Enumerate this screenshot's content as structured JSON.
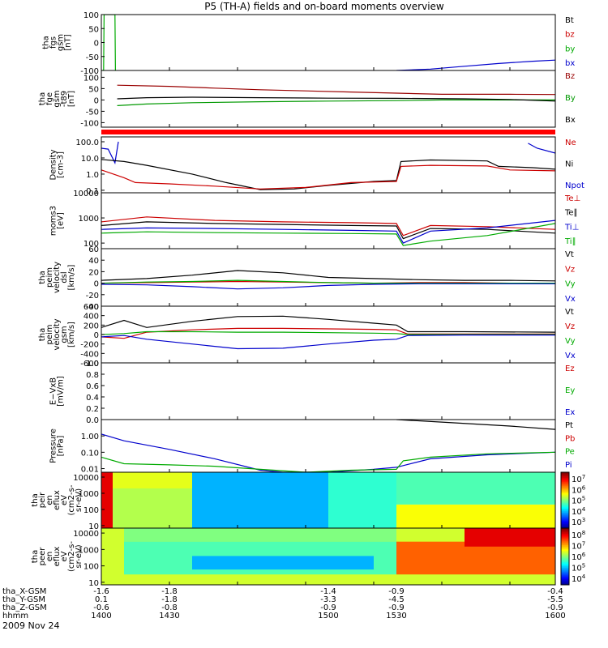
{
  "title": "P5 (TH-A) fields and on-board moments overview",
  "date_label": "2009 Nov 24",
  "time_axis": {
    "rows": [
      {
        "label": "tha_X-GSM",
        "values": [
          "-1.6",
          "-1.8",
          "-1.4",
          "-0.9",
          "-0.4"
        ]
      },
      {
        "label": "tha_Y-GSM",
        "values": [
          "0.1",
          "-1.8",
          "-3.3",
          "-4.5",
          "-5.5"
        ]
      },
      {
        "label": "tha_Z-GSM",
        "values": [
          "-0.6",
          "-0.8",
          "-0.9",
          "-0.9",
          "-0.9"
        ]
      },
      {
        "label": "hhmm",
        "values": [
          "1400",
          "1430",
          "1500",
          "1530",
          "1600"
        ]
      }
    ]
  },
  "colors": {
    "black": "#000000",
    "red": "#cc0000",
    "green": "#00cc00",
    "blue": "#0000cc",
    "dark_red": "#990000"
  },
  "chart_data": [
    {
      "type": "line",
      "panel": "fgs",
      "ylabel": [
        "tha",
        "fgs",
        "gsm",
        "[nT]"
      ],
      "ylim": [
        -100,
        100
      ],
      "yticks": [
        "100",
        "50",
        "0",
        "-50",
        "-100"
      ],
      "legend": [
        {
          "name": "Bt",
          "color": "#000000"
        },
        {
          "name": "bz",
          "color": "#cc0000"
        },
        {
          "name": "by",
          "color": "#00aa00"
        },
        {
          "name": "bx",
          "color": "#0000cc"
        }
      ],
      "series": [
        {
          "name": "by",
          "x": [
            1400,
            1401,
            1401.2,
            1406,
            1406.2
          ],
          "y": [
            -100,
            -100,
            100,
            100,
            -100
          ]
        },
        {
          "name": "bx",
          "x": [
            1530,
            1545,
            1560,
            1575,
            1590,
            1600
          ],
          "y": [
            -100,
            -95,
            -85,
            -75,
            -67,
            -63
          ]
        }
      ]
    },
    {
      "type": "line",
      "panel": "fge",
      "ylabel": [
        "tha",
        "fge",
        "gsm",
        "-t89",
        "[nT]"
      ],
      "ylim": [
        -120,
        130
      ],
      "yticks": [
        "100",
        "50",
        "0",
        "-50",
        "-100"
      ],
      "legend": [
        {
          "name": "Bz",
          "color": "#990000"
        },
        {
          "name": "By",
          "color": "#009900"
        },
        {
          "name": "Bx",
          "color": "#000000"
        }
      ],
      "series": [
        {
          "name": "Bz",
          "x": [
            1407,
            1430,
            1450,
            1470,
            1490,
            1510,
            1530,
            1550,
            1580,
            1600
          ],
          "y": [
            65,
            60,
            52,
            45,
            40,
            35,
            30,
            25,
            25,
            24
          ]
        },
        {
          "name": "By",
          "x": [
            1407,
            1420,
            1440,
            1470,
            1500,
            1530,
            1550,
            1580,
            1600
          ],
          "y": [
            -25,
            -18,
            -12,
            -8,
            -5,
            -3,
            0,
            0,
            0
          ]
        },
        {
          "name": "Bx",
          "x": [
            1407,
            1420,
            1440,
            1470,
            1500,
            1530,
            1560,
            1580,
            1600
          ],
          "y": [
            5,
            10,
            12,
            10,
            8,
            7,
            5,
            2,
            -5
          ]
        }
      ]
    },
    {
      "type": "line",
      "panel": "density",
      "ylabel": [
        "Density",
        "[cm-3]"
      ],
      "log": true,
      "ylim": [
        0.07,
        200
      ],
      "yticks": [
        "100.0",
        "10.0",
        "1.0",
        "0.1"
      ],
      "legend": [
        {
          "name": "Ne",
          "color": "#cc0000"
        },
        {
          "name": "Ni",
          "color": "#000000"
        },
        {
          "name": "Npot",
          "color": "#0000cc"
        }
      ],
      "series": [
        {
          "name": "Npot",
          "x": [
            1400,
            1403,
            1406,
            1407.5
          ],
          "y": [
            40,
            35,
            5,
            100
          ]
        },
        {
          "name": "Npot",
          "x": [
            1588,
            1592,
            1600
          ],
          "y": [
            80,
            40,
            20
          ]
        },
        {
          "name": "Ni",
          "x": [
            1400,
            1410,
            1420,
            1440,
            1455,
            1470,
            1485,
            1500,
            1520,
            1530,
            1532,
            1545,
            1570,
            1575,
            1590,
            1600
          ],
          "y": [
            8,
            6,
            3.5,
            1.0,
            0.3,
            0.11,
            0.12,
            0.2,
            0.35,
            0.4,
            6,
            7.5,
            6.5,
            3,
            2.5,
            2.0
          ]
        },
        {
          "name": "Ne",
          "x": [
            1400,
            1410,
            1415,
            1430,
            1450,
            1470,
            1490,
            1510,
            1530,
            1532,
            1545,
            1570,
            1580,
            1600
          ],
          "y": [
            1.8,
            0.6,
            0.3,
            0.25,
            0.18,
            0.12,
            0.15,
            0.3,
            0.35,
            3,
            3.5,
            3.2,
            1.8,
            1.6
          ]
        }
      ]
    },
    {
      "type": "line",
      "panel": "temperature",
      "ylabel": [
        "moms3",
        "[eV]"
      ],
      "log": true,
      "ylim": [
        60,
        10000
      ],
      "yticks": [
        "10000",
        "1000",
        "100"
      ],
      "legend": [
        {
          "name": "Te⊥",
          "color": "#cc0000"
        },
        {
          "name": "Te∥",
          "color": "#000000"
        },
        {
          "name": "Ti⊥",
          "color": "#0000cc"
        },
        {
          "name": "Ti∥",
          "color": "#00aa00"
        }
      ],
      "series": [
        {
          "name": "Te⊥",
          "x": [
            1400,
            1420,
            1450,
            1480,
            1510,
            1530,
            1533,
            1545,
            1570,
            1600
          ],
          "y": [
            700,
            1100,
            800,
            700,
            650,
            600,
            200,
            500,
            450,
            350
          ]
        },
        {
          "name": "Te∥",
          "x": [
            1400,
            1420,
            1450,
            1480,
            1510,
            1530,
            1533,
            1545,
            1570,
            1600
          ],
          "y": [
            500,
            700,
            600,
            550,
            500,
            480,
            150,
            380,
            350,
            250
          ]
        },
        {
          "name": "Ti⊥",
          "x": [
            1400,
            1420,
            1450,
            1480,
            1510,
            1530,
            1533,
            1545,
            1570,
            1600
          ],
          "y": [
            350,
            400,
            380,
            350,
            320,
            300,
            100,
            300,
            400,
            800
          ]
        },
        {
          "name": "Ti∥",
          "x": [
            1400,
            1420,
            1450,
            1480,
            1510,
            1530,
            1533,
            1545,
            1570,
            1600
          ],
          "y": [
            250,
            280,
            260,
            250,
            240,
            230,
            80,
            120,
            200,
            600
          ]
        }
      ]
    },
    {
      "type": "line",
      "panel": "eesa_velocity",
      "ylabel": [
        "tha",
        "peim",
        "velocity",
        "dsl",
        "[km/s]"
      ],
      "ylim": [
        -40,
        60
      ],
      "yticks": [
        "60",
        "40",
        "20",
        "0",
        "-20",
        "-40"
      ],
      "legend": [
        {
          "name": "Vt",
          "color": "#000000"
        },
        {
          "name": "Vz",
          "color": "#cc0000"
        },
        {
          "name": "Vy",
          "color": "#00aa00"
        },
        {
          "name": "Vx",
          "color": "#0000cc"
        }
      ],
      "series": [
        {
          "name": "Vt",
          "x": [
            1400,
            1420,
            1440,
            1460,
            1480,
            1500,
            1520,
            1540,
            1560,
            1580,
            1600
          ],
          "y": [
            5,
            8,
            14,
            22,
            18,
            10,
            8,
            6,
            5,
            5,
            4
          ]
        },
        {
          "name": "Vz",
          "x": [
            1400,
            1420,
            1440,
            1460,
            1480,
            1500,
            1520,
            1540,
            1560,
            1580,
            1600
          ],
          "y": [
            0,
            1,
            2,
            3,
            2,
            1,
            0,
            1,
            1,
            0,
            0
          ]
        },
        {
          "name": "Vy",
          "x": [
            1400,
            1420,
            1440,
            1460,
            1480,
            1500,
            1520,
            1540,
            1560,
            1580,
            1600
          ],
          "y": [
            0,
            2,
            3,
            5,
            3,
            1,
            0,
            0,
            0,
            0,
            0
          ]
        },
        {
          "name": "Vx",
          "x": [
            1400,
            1420,
            1440,
            1460,
            1480,
            1500,
            1520,
            1540,
            1560,
            1580,
            1600
          ],
          "y": [
            -2,
            -3,
            -6,
            -10,
            -8,
            -4,
            -2,
            -1,
            -1,
            -1,
            -1
          ]
        }
      ]
    },
    {
      "type": "line",
      "panel": "esa_velocity",
      "ylabel": [
        "tha",
        "peim",
        "velocity",
        "gsm",
        "[km/s]"
      ],
      "ylim": [
        -600,
        600
      ],
      "yticks": [
        "600",
        "400",
        "200",
        "0",
        "-200",
        "-400",
        "-600"
      ],
      "legend": [
        {
          "name": "Vt",
          "color": "#000000"
        },
        {
          "name": "Vz",
          "color": "#cc0000"
        },
        {
          "name": "Vy",
          "color": "#00aa00"
        },
        {
          "name": "Vx",
          "color": "#0000cc"
        }
      ],
      "series": [
        {
          "name": "Vt",
          "x": [
            1400,
            1410,
            1420,
            1440,
            1460,
            1480,
            1500,
            1520,
            1530,
            1535,
            1560,
            1600
          ],
          "y": [
            150,
            300,
            150,
            280,
            380,
            390,
            320,
            240,
            200,
            60,
            60,
            50
          ]
        },
        {
          "name": "Vz",
          "x": [
            1400,
            1410,
            1420,
            1440,
            1460,
            1480,
            1500,
            1520,
            1530,
            1535,
            1560,
            1600
          ],
          "y": [
            -50,
            -80,
            50,
            100,
            130,
            130,
            120,
            110,
            100,
            10,
            10,
            10
          ]
        },
        {
          "name": "Vy",
          "x": [
            1400,
            1410,
            1420,
            1440,
            1460,
            1480,
            1500,
            1520,
            1530,
            1535,
            1560,
            1600
          ],
          "y": [
            0,
            20,
            60,
            60,
            50,
            50,
            40,
            30,
            20,
            0,
            0,
            0
          ]
        },
        {
          "name": "Vx",
          "x": [
            1400,
            1410,
            1420,
            1440,
            1460,
            1480,
            1500,
            1520,
            1530,
            1535,
            1560,
            1600
          ],
          "y": [
            -50,
            -20,
            -100,
            -200,
            -300,
            -290,
            -200,
            -120,
            -100,
            -20,
            -10,
            -10
          ]
        }
      ]
    },
    {
      "type": "line",
      "panel": "efield",
      "ylabel": [
        "E−VxB",
        "[mV/m]"
      ],
      "ylim": [
        0,
        1
      ],
      "yticks": [
        "1.0",
        "0.8",
        "0.6",
        "0.4",
        "0.2",
        "0.0"
      ],
      "legend": [
        {
          "name": "Ez",
          "color": "#cc0000"
        },
        {
          "name": "Ey",
          "color": "#00aa00"
        },
        {
          "name": "Ex",
          "color": "#0000cc"
        }
      ],
      "series": []
    },
    {
      "type": "line",
      "panel": "pressure",
      "ylabel": [
        "Pressure",
        "[nPa]"
      ],
      "log": true,
      "ylim": [
        0.006,
        10
      ],
      "yticks": [
        "1.00",
        "0.10",
        "0.01"
      ],
      "legend": [
        {
          "name": "Pt",
          "color": "#000000"
        },
        {
          "name": "Pb",
          "color": "#cc0000"
        },
        {
          "name": "Pe",
          "color": "#00aa00"
        },
        {
          "name": "Pi",
          "color": "#0000cc"
        }
      ],
      "series": [
        {
          "name": "Pt",
          "x": [
            1530,
            1550,
            1580,
            1600
          ],
          "y": [
            10,
            7,
            4,
            2.5
          ]
        },
        {
          "name": "Pi",
          "x": [
            1400,
            1410,
            1430,
            1450,
            1470,
            1480,
            1490,
            1500,
            1520,
            1530,
            1545,
            1570,
            1600
          ],
          "y": [
            1.3,
            0.5,
            0.15,
            0.04,
            0.008,
            0.006,
            0.005,
            0.006,
            0.009,
            0.012,
            0.04,
            0.07,
            0.1
          ]
        },
        {
          "name": "Pe",
          "x": [
            1400,
            1410,
            1430,
            1450,
            1470,
            1490,
            1510,
            1530,
            1533,
            1545,
            1570,
            1600
          ],
          "y": [
            0.05,
            0.02,
            0.017,
            0.014,
            0.009,
            0.006,
            0.008,
            0.009,
            0.03,
            0.05,
            0.08,
            0.1
          ]
        }
      ]
    },
    {
      "type": "heatmap",
      "panel": "ion_spectrogram",
      "ylabel": [
        "tha",
        "peir",
        "en",
        "eflux",
        "eV",
        "(cm2-s-",
        "sr-eV)"
      ],
      "log": true,
      "ylim": [
        7,
        20000
      ],
      "yticks": [
        "10000",
        "1000",
        "100",
        "10"
      ],
      "colorbar": {
        "min_exp": 3,
        "max_exp": 7,
        "labels": [
          "10^7",
          "10^6",
          "10^5",
          "10^4",
          "10^3"
        ]
      },
      "regions": [
        {
          "x": [
            1400,
            1405
          ],
          "y": [
            7,
            20000
          ],
          "level": 0.9
        },
        {
          "x": [
            1405,
            1440
          ],
          "y": [
            7,
            20000
          ],
          "level": 0.55
        },
        {
          "x": [
            1405,
            1440
          ],
          "y": [
            2000,
            20000
          ],
          "level": 0.6
        },
        {
          "x": [
            1440,
            1500
          ],
          "y": [
            7,
            20000
          ],
          "level": 0.3
        },
        {
          "x": [
            1500,
            1530
          ],
          "y": [
            7,
            20000
          ],
          "level": 0.42
        },
        {
          "x": [
            1530,
            1600
          ],
          "y": [
            200,
            20000
          ],
          "level": 0.45
        },
        {
          "x": [
            1530,
            1600
          ],
          "y": [
            7,
            200
          ],
          "level": 0.62
        }
      ]
    },
    {
      "type": "heatmap",
      "panel": "electron_spectrogram",
      "ylabel": [
        "tha",
        "peer",
        "en",
        "eflux",
        "eV",
        "(cm2-s-",
        "sr-eV)"
      ],
      "log": true,
      "ylim": [
        7,
        20000
      ],
      "yticks": [
        "10000",
        "1000",
        "100",
        "10"
      ],
      "colorbar": {
        "min_exp": 3.5,
        "max_exp": 8,
        "labels": [
          "10^8",
          "10^7",
          "10^6",
          "10^5",
          "10^4"
        ]
      },
      "regions": [
        {
          "x": [
            1400,
            1600
          ],
          "y": [
            7,
            20000
          ],
          "level": 0.58
        },
        {
          "x": [
            1410,
            1530
          ],
          "y": [
            3000,
            20000
          ],
          "level": 0.5
        },
        {
          "x": [
            1410,
            1530
          ],
          "y": [
            30,
            3000
          ],
          "level": 0.45
        },
        {
          "x": [
            1440,
            1520
          ],
          "y": [
            60,
            400
          ],
          "level": 0.3
        },
        {
          "x": [
            1530,
            1600
          ],
          "y": [
            30,
            3000
          ],
          "level": 0.78
        },
        {
          "x": [
            1560,
            1600
          ],
          "y": [
            1500,
            20000
          ],
          "level": 0.9
        }
      ]
    }
  ]
}
